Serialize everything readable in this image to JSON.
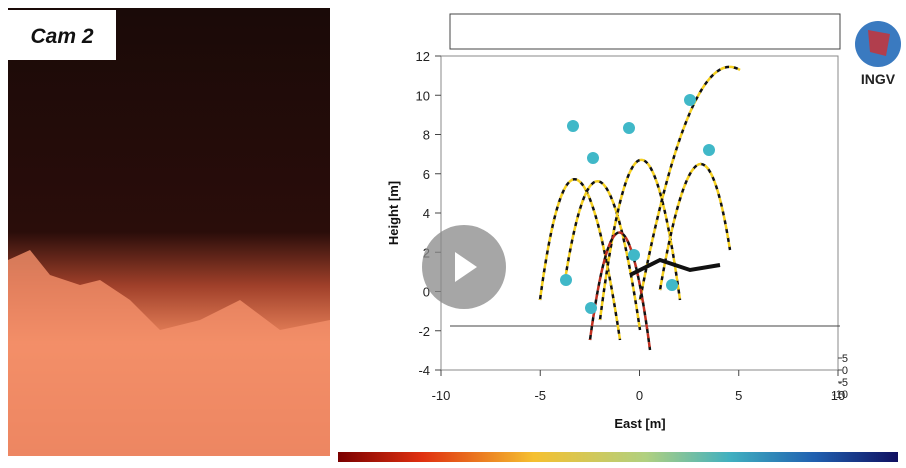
{
  "video": {
    "camera_label": "Cam 2",
    "logo": "INGV"
  },
  "plot": {
    "ylabel": "Height [m]",
    "xlabel": "East [m]",
    "xticks": [
      -10,
      -5,
      0,
      5,
      10
    ],
    "yticks": [
      -4,
      -2,
      0,
      2,
      4,
      6,
      8,
      10,
      12
    ],
    "zticks": [
      5,
      0,
      -5,
      -10
    ]
  }
}
